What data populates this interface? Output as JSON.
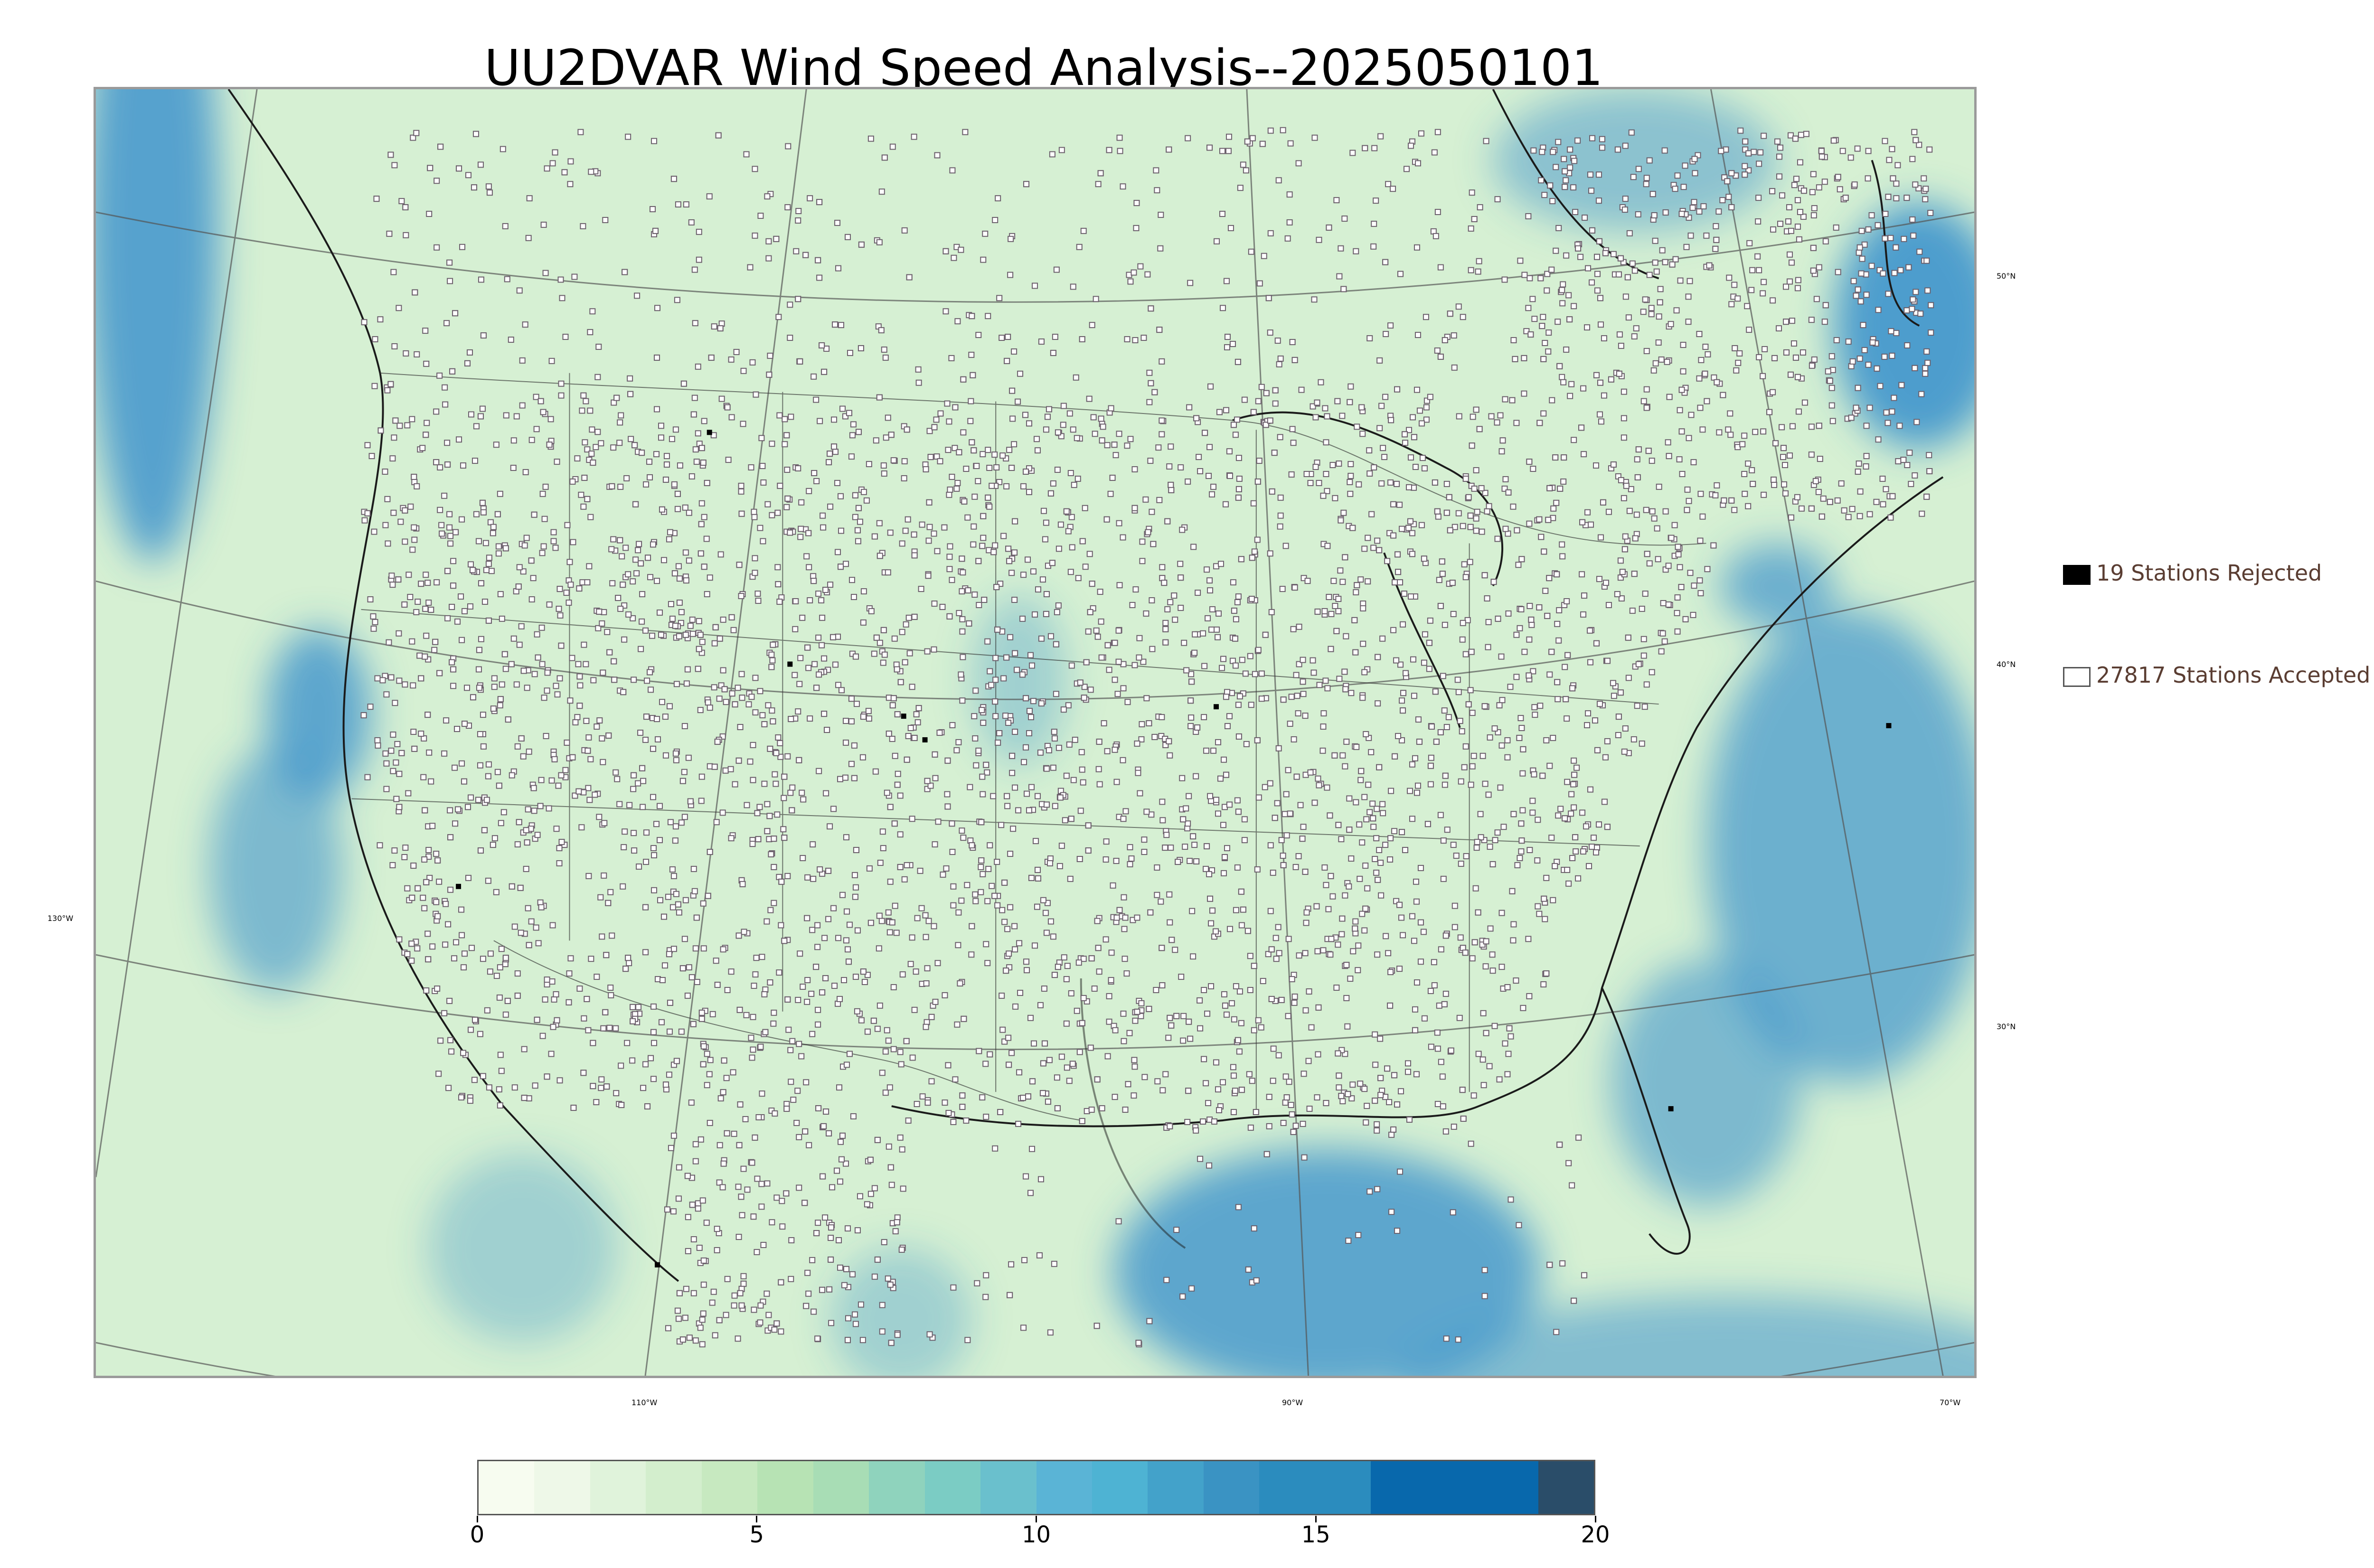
{
  "title": "UU2DVAR Wind Speed Analysis--2025050101",
  "map": {
    "projection": "lambert-conformal",
    "background_color": "#d6f0d3",
    "ocean_high_wind_color": "#3f94cc",
    "station_marker_color": "#6b5f6b",
    "longitude_labels": [
      "130°W",
      "110°W",
      "90°W",
      "70°W"
    ],
    "latitude_labels": [
      "50°N",
      "40°N",
      "30°N"
    ]
  },
  "legend": {
    "rejected": {
      "label": "19 Stations Rejected",
      "icon": "filled-square-icon",
      "color": "#000000"
    },
    "accepted": {
      "label": "27817 Stations Accepted",
      "icon": "open-square-icon",
      "color": "#ffffff"
    }
  },
  "colorbar": {
    "min": 0,
    "max": 20,
    "tick_labels": [
      "0",
      "5",
      "10",
      "15",
      "20"
    ],
    "colors": [
      "#f7fcf0",
      "#eef8e8",
      "#e0f3db",
      "#d3eecd",
      "#c7e9c0",
      "#b7e3b4",
      "#a8ddb5",
      "#8fd3bd",
      "#7bccc4",
      "#6ac0cd",
      "#5ab4d6",
      "#4eb3d3",
      "#43a2ca",
      "#3a93c3",
      "#2b8cbe",
      "#2b8cbe",
      "#0868ac",
      "#0868ac",
      "#0868ac",
      "#2a4d69"
    ]
  }
}
